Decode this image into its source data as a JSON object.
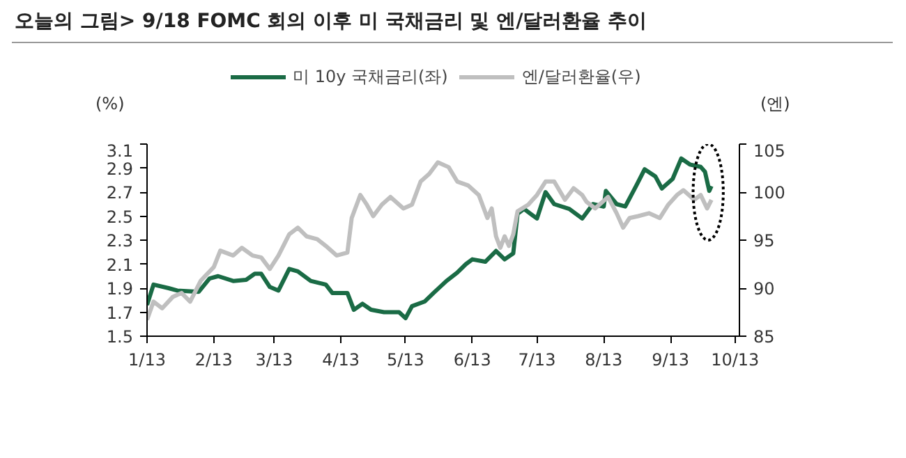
{
  "chart_data": {
    "type": "line",
    "title": "오늘의 그림> 9/18 FOMC 회의 이후 미 국채금리 및 엔/달러환율 추이",
    "ylabel": "(%)",
    "y2label": "(엔)",
    "xlim": [
      "2013-01-01",
      "2013-10-03"
    ],
    "xticks": [
      {
        "value": "2013-01-01",
        "label": "1/13"
      },
      {
        "value": "2013-02-01",
        "label": "2/13"
      },
      {
        "value": "2013-03-01",
        "label": "3/13"
      },
      {
        "value": "2013-04-01",
        "label": "4/13"
      },
      {
        "value": "2013-05-01",
        "label": "5/13"
      },
      {
        "value": "2013-06-01",
        "label": "6/13"
      },
      {
        "value": "2013-07-01",
        "label": "7/13"
      },
      {
        "value": "2013-08-01",
        "label": "8/13"
      },
      {
        "value": "2013-09-01",
        "label": "9/13"
      },
      {
        "value": "2013-10-01",
        "label": "10/13"
      }
    ],
    "ylim": [
      1.5,
      3.1
    ],
    "yticks": [
      1.5,
      1.7,
      1.9,
      2.1,
      2.3,
      2.5,
      2.7,
      2.9,
      3.1
    ],
    "y2lim": [
      85,
      105
    ],
    "y2ticks": [
      85,
      90,
      95,
      100,
      105
    ],
    "legend": "top",
    "grid": false,
    "marker": "none",
    "line_style": "solid",
    "series": [
      {
        "name": "미 10y 국채금리(좌)",
        "color": "#1a6b45",
        "x": [
          "2013-01-01",
          "2013-01-04",
          "2013-01-11",
          "2013-01-15",
          "2013-01-25",
          "2013-01-30",
          "2013-02-03",
          "2013-02-10",
          "2013-02-16",
          "2013-02-20",
          "2013-02-23",
          "2013-02-27",
          "2013-03-03",
          "2013-03-08",
          "2013-03-12",
          "2013-03-18",
          "2013-03-25",
          "2013-03-28",
          "2013-04-04",
          "2013-04-07",
          "2013-04-11",
          "2013-04-15",
          "2013-04-21",
          "2013-04-28",
          "2013-05-01",
          "2013-05-04",
          "2013-05-10",
          "2013-05-14",
          "2013-05-20",
          "2013-05-25",
          "2013-05-29",
          "2013-06-01",
          "2013-06-07",
          "2013-06-12",
          "2013-06-16",
          "2013-06-20",
          "2013-06-22",
          "2013-06-25",
          "2013-07-01",
          "2013-07-05",
          "2013-07-09",
          "2013-07-16",
          "2013-07-22",
          "2013-07-27",
          "2013-08-01",
          "2013-08-02",
          "2013-08-07",
          "2013-08-11",
          "2013-08-16",
          "2013-08-20",
          "2013-08-25",
          "2013-08-28",
          "2013-09-02",
          "2013-09-06",
          "2013-09-10",
          "2013-09-15",
          "2013-09-17",
          "2013-09-19",
          "2013-09-20"
        ],
        "values": [
          1.76,
          1.93,
          1.9,
          1.88,
          1.87,
          1.98,
          2.0,
          1.96,
          1.97,
          2.02,
          2.02,
          1.91,
          1.88,
          2.06,
          2.04,
          1.96,
          1.93,
          1.86,
          1.86,
          1.72,
          1.77,
          1.72,
          1.7,
          1.7,
          1.65,
          1.75,
          1.79,
          1.86,
          1.96,
          2.03,
          2.1,
          2.14,
          2.12,
          2.21,
          2.14,
          2.19,
          2.52,
          2.56,
          2.48,
          2.7,
          2.6,
          2.56,
          2.48,
          2.6,
          2.58,
          2.71,
          2.6,
          2.58,
          2.75,
          2.89,
          2.83,
          2.73,
          2.81,
          2.98,
          2.93,
          2.91,
          2.87,
          2.71,
          2.75
        ]
      },
      {
        "name": "엔/달러환율(우)",
        "color": "#bfbfbf",
        "axis": "y2",
        "x": [
          "2013-01-01",
          "2013-01-04",
          "2013-01-08",
          "2013-01-13",
          "2013-01-17",
          "2013-01-21",
          "2013-01-26",
          "2013-02-01",
          "2013-02-04",
          "2013-02-10",
          "2013-02-14",
          "2013-02-19",
          "2013-02-23",
          "2013-02-27",
          "2013-03-03",
          "2013-03-08",
          "2013-03-12",
          "2013-03-16",
          "2013-03-21",
          "2013-03-25",
          "2013-03-30",
          "2013-04-04",
          "2013-04-06",
          "2013-04-10",
          "2013-04-13",
          "2013-04-16",
          "2013-04-20",
          "2013-04-24",
          "2013-04-30",
          "2013-05-04",
          "2013-05-08",
          "2013-05-12",
          "2013-05-16",
          "2013-05-21",
          "2013-05-25",
          "2013-05-30",
          "2013-06-04",
          "2013-06-08",
          "2013-06-10",
          "2013-06-12",
          "2013-06-14",
          "2013-06-16",
          "2013-06-18",
          "2013-06-20",
          "2013-06-22",
          "2013-06-27",
          "2013-07-01",
          "2013-07-05",
          "2013-07-09",
          "2013-07-14",
          "2013-07-18",
          "2013-07-22",
          "2013-07-24",
          "2013-07-28",
          "2013-08-03",
          "2013-08-07",
          "2013-08-10",
          "2013-08-13",
          "2013-08-17",
          "2013-08-22",
          "2013-08-27",
          "2013-08-31",
          "2013-09-04",
          "2013-09-07",
          "2013-09-12",
          "2013-09-15",
          "2013-09-18",
          "2013-09-20"
        ],
        "values": [
          86.7,
          88.6,
          87.9,
          89.1,
          89.5,
          88.6,
          90.8,
          92.2,
          93.9,
          93.4,
          94.2,
          93.4,
          93.2,
          92.0,
          93.4,
          95.6,
          96.3,
          95.4,
          95.1,
          94.4,
          93.4,
          93.7,
          97.3,
          99.7,
          98.7,
          97.5,
          98.7,
          99.5,
          98.3,
          98.7,
          101.1,
          101.9,
          103.1,
          102.6,
          101.1,
          100.7,
          99.7,
          97.3,
          98.3,
          95.4,
          94.2,
          95.4,
          94.4,
          95.6,
          98.0,
          98.7,
          99.7,
          101.1,
          101.1,
          99.2,
          100.4,
          99.7,
          99.0,
          98.3,
          99.5,
          97.8,
          96.3,
          97.3,
          97.5,
          97.8,
          97.3,
          98.7,
          99.7,
          100.2,
          99.2,
          99.7,
          98.3,
          99.2
        ]
      }
    ]
  }
}
